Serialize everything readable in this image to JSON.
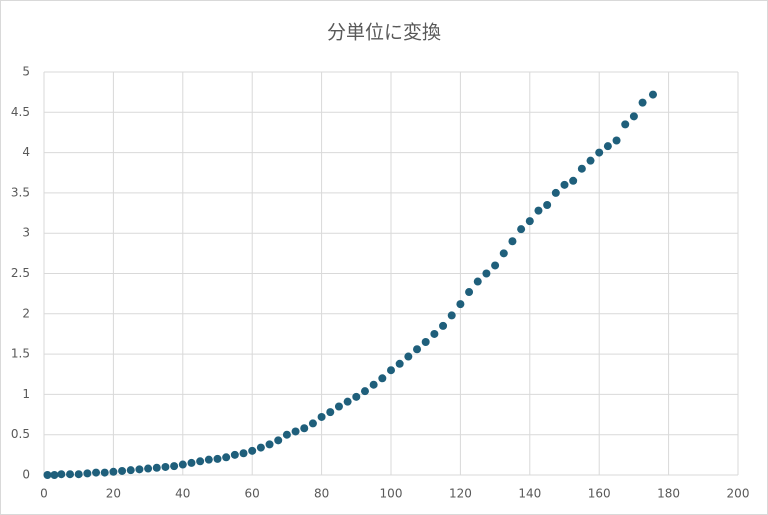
{
  "chart_data": {
    "type": "scatter",
    "title": "分単位に変換",
    "x": [
      1,
      3,
      5,
      7.5,
      10,
      12.5,
      15,
      17.5,
      20,
      22.5,
      25,
      27.5,
      30,
      32.5,
      35,
      37.5,
      40,
      42.5,
      45,
      47.5,
      50,
      52.5,
      55,
      57.5,
      60,
      62.5,
      65,
      67.5,
      70,
      72.5,
      75,
      77.5,
      80,
      82.5,
      85,
      87.5,
      90,
      92.5,
      95,
      97.5,
      100,
      102.5,
      105,
      107.5,
      110,
      112.5,
      115,
      117.5,
      120,
      122.5,
      125,
      127.5,
      130,
      132.5,
      135,
      137.5,
      140,
      142.5,
      145,
      147.5,
      150,
      152.5,
      155,
      157.5,
      160,
      162.5,
      165,
      167.5,
      170,
      172.5,
      175.5
    ],
    "values": [
      0,
      0,
      0.01,
      0.01,
      0.01,
      0.02,
      0.03,
      0.03,
      0.04,
      0.05,
      0.06,
      0.07,
      0.08,
      0.09,
      0.1,
      0.11,
      0.13,
      0.15,
      0.17,
      0.19,
      0.2,
      0.22,
      0.25,
      0.27,
      0.3,
      0.34,
      0.38,
      0.43,
      0.5,
      0.54,
      0.58,
      0.64,
      0.72,
      0.78,
      0.85,
      0.91,
      0.97,
      1.04,
      1.12,
      1.2,
      1.3,
      1.38,
      1.47,
      1.56,
      1.65,
      1.75,
      1.85,
      1.98,
      2.12,
      2.27,
      2.4,
      2.5,
      2.6,
      2.75,
      2.9,
      3.05,
      3.15,
      3.28,
      3.35,
      3.5,
      3.6,
      3.65,
      3.8,
      3.9,
      4.0,
      4.08,
      4.15,
      4.35,
      4.45,
      4.62,
      4.72
    ],
    "color": "#1f5f7b",
    "xlim": [
      0,
      200
    ],
    "xticks": [
      0,
      20,
      40,
      60,
      80,
      100,
      120,
      140,
      160,
      180,
      200
    ],
    "ylim": [
      0,
      5
    ],
    "yticks": [
      0,
      0.5,
      1,
      1.5,
      2,
      2.5,
      3,
      3.5,
      4,
      4.5,
      5
    ],
    "grid": true
  }
}
